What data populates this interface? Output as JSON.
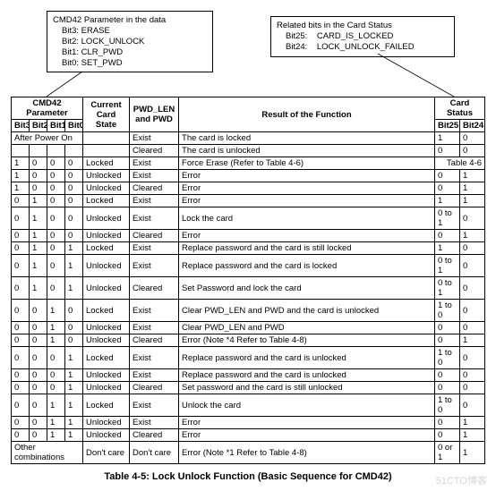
{
  "callout1": {
    "title": "CMD42 Parameter in the data",
    "l1": "Bit3: ERASE",
    "l2": "Bit2: LOCK_UNLOCK",
    "l3": "Bit1: CLR_PWD",
    "l4": "Bit0: SET_PWD"
  },
  "callout2": {
    "title": "Related bits in the Card Status",
    "l1": "Bit25:    CARD_IS_LOCKED",
    "l2": "Bit24:    LOCK_UNLOCK_FAILED"
  },
  "hdr": {
    "cmd42": "CMD42 Parameter",
    "state": "Current Card State",
    "pwd": "PWD_LEN and PWD",
    "result": "Result of the Function",
    "card": "Card Status",
    "b3": "Bit3",
    "b2": "Bit2",
    "b1": "Bit1",
    "b0": "Bit0",
    "b25": "Bit25",
    "b24": "Bit24"
  },
  "rows": [
    {
      "b3": "After Power On",
      "span4": true,
      "state": "",
      "pwd": "Exist",
      "res": "The card is locked",
      "c25": "1",
      "c24": "0"
    },
    {
      "b3": "",
      "b2": "",
      "b1": "",
      "b0": "",
      "state": "",
      "pwd": "Cleared",
      "res": "The card is unlocked",
      "c25": "0",
      "c24": "0"
    },
    {
      "b3": "1",
      "b2": "0",
      "b1": "0",
      "b0": "0",
      "state": "Locked",
      "pwd": "Exist",
      "res": "Force Erase (Refer to Table 4-6)",
      "c25": "Table 4-6",
      "csSpan": true
    },
    {
      "b3": "1",
      "b2": "0",
      "b1": "0",
      "b0": "0",
      "state": "Unlocked",
      "pwd": "Exist",
      "res": "Error",
      "c25": "0",
      "c24": "1"
    },
    {
      "b3": "1",
      "b2": "0",
      "b1": "0",
      "b0": "0",
      "state": "Unlocked",
      "pwd": "Cleared",
      "res": "Error",
      "c25": "0",
      "c24": "1"
    },
    {
      "b3": "0",
      "b2": "1",
      "b1": "0",
      "b0": "0",
      "state": "Locked",
      "pwd": "Exist",
      "res": "Error",
      "c25": "1",
      "c24": "1"
    },
    {
      "b3": "0",
      "b2": "1",
      "b1": "0",
      "b0": "0",
      "state": "Unlocked",
      "pwd": "Exist",
      "res": "Lock the card",
      "c25": "0 to 1",
      "c24": "0"
    },
    {
      "b3": "0",
      "b2": "1",
      "b1": "0",
      "b0": "0",
      "state": "Unlocked",
      "pwd": "Cleared",
      "res": "Error",
      "c25": "0",
      "c24": "1"
    },
    {
      "b3": "0",
      "b2": "1",
      "b1": "0",
      "b0": "1",
      "state": "Locked",
      "pwd": "Exist",
      "res": "Replace password and the card is still locked",
      "c25": "1",
      "c24": "0"
    },
    {
      "b3": "0",
      "b2": "1",
      "b1": "0",
      "b0": "1",
      "state": "Unlocked",
      "pwd": "Exist",
      "res": "Replace password and the card is locked",
      "c25": "0 to 1",
      "c24": "0"
    },
    {
      "b3": "0",
      "b2": "1",
      "b1": "0",
      "b0": "1",
      "state": "Unlocked",
      "pwd": "Cleared",
      "res": "Set Password and lock the card",
      "c25": "0 to 1",
      "c24": "0"
    },
    {
      "b3": "0",
      "b2": "0",
      "b1": "1",
      "b0": "0",
      "state": "Locked",
      "pwd": "Exist",
      "res": "Clear PWD_LEN and PWD and the card is unlocked",
      "c25": "1 to 0",
      "c24": "0"
    },
    {
      "b3": "0",
      "b2": "0",
      "b1": "1",
      "b0": "0",
      "state": "Unlocked",
      "pwd": "Exist",
      "res": "Clear PWD_LEN and PWD",
      "c25": "0",
      "c24": "0"
    },
    {
      "b3": "0",
      "b2": "0",
      "b1": "1",
      "b0": "0",
      "state": "Unlocked",
      "pwd": "Cleared",
      "res": "Error (Note *4  Refer to Table 4-8)",
      "c25": "0",
      "c24": "1"
    },
    {
      "b3": "0",
      "b2": "0",
      "b1": "0",
      "b0": "1",
      "state": "Locked",
      "pwd": "Exist",
      "res": "Replace password and the card is unlocked",
      "c25": "1 to 0",
      "c24": "0"
    },
    {
      "b3": "0",
      "b2": "0",
      "b1": "0",
      "b0": "1",
      "state": "Unlocked",
      "pwd": "Exist",
      "res": "Replace password and the card is unlocked",
      "c25": "0",
      "c24": "0"
    },
    {
      "b3": "0",
      "b2": "0",
      "b1": "0",
      "b0": "1",
      "state": "Unlocked",
      "pwd": "Cleared",
      "res": "Set password and the card is still unlocked",
      "c25": "0",
      "c24": "0"
    },
    {
      "b3": "0",
      "b2": "0",
      "b1": "1",
      "b0": "1",
      "state": "Locked",
      "pwd": "Exist",
      "res": "Unlock the card",
      "c25": "1 to 0",
      "c24": "0"
    },
    {
      "b3": "0",
      "b2": "0",
      "b1": "1",
      "b0": "1",
      "state": "Unlocked",
      "pwd": "Exist",
      "res": "Error",
      "c25": "0",
      "c24": "1"
    },
    {
      "b3": "0",
      "b2": "0",
      "b1": "1",
      "b0": "1",
      "state": "Unlocked",
      "pwd": "Cleared",
      "res": "Error",
      "c25": "0",
      "c24": "1"
    },
    {
      "b3": "Other combinations",
      "span4": true,
      "state": "Don't care",
      "pwd": "Don't care",
      "res": "Error (Note *1  Refer to Table 4-8)",
      "c25": "0 or 1",
      "c24": "1"
    }
  ],
  "caption": "Table 4-5: Lock Unlock Function (Basic Sequence for CMD42)",
  "watermark": "51CTO博客"
}
